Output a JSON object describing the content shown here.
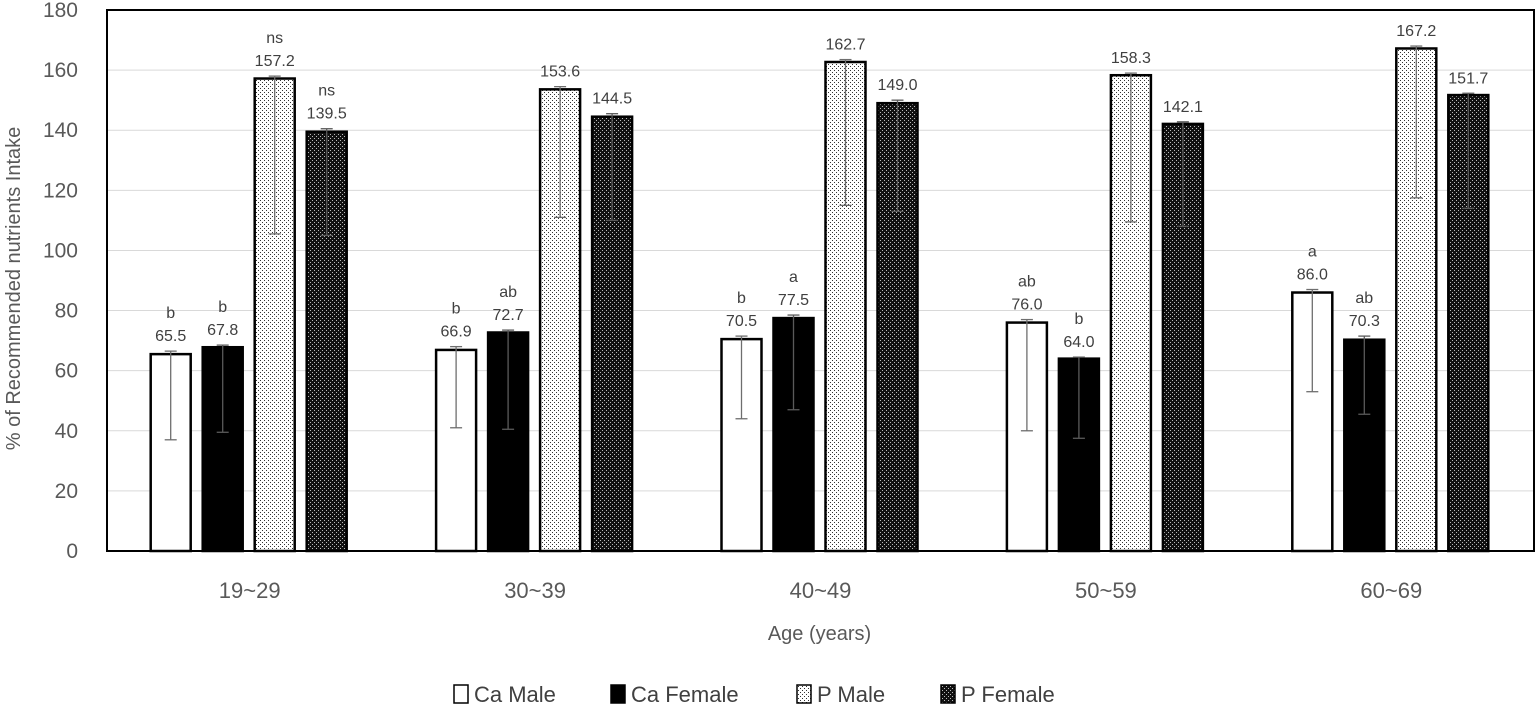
{
  "chart_data": {
    "type": "bar",
    "title": "",
    "xlabel": "Age (years)",
    "ylabel": "% of Recommended nutrients Intake",
    "ylim": [
      0,
      180
    ],
    "yticks": [
      0,
      20,
      40,
      60,
      80,
      100,
      120,
      140,
      160,
      180
    ],
    "categories": [
      "19~29",
      "30~39",
      "40~49",
      "50~59",
      "60~69"
    ],
    "legend_position": "bottom",
    "grid": true,
    "series": [
      {
        "name": "Ca Male",
        "pattern": "white",
        "values": [
          65.5,
          66.9,
          70.5,
          76.0,
          86.0
        ],
        "labels": [
          "65.5",
          "66.9",
          "70.5",
          "76.0",
          "86.0"
        ],
        "error_low": [
          37,
          41,
          44,
          40,
          53
        ],
        "error_high": [
          66.5,
          68,
          71.5,
          77,
          87
        ],
        "significance": [
          "b",
          "b",
          "b",
          "ab",
          "a"
        ]
      },
      {
        "name": "Ca Female",
        "pattern": "black",
        "values": [
          67.8,
          72.7,
          77.5,
          64.0,
          70.3
        ],
        "labels": [
          "67.8",
          "72.7",
          "77.5",
          "64.0",
          "70.3"
        ],
        "error_low": [
          39.5,
          40.5,
          47,
          37.5,
          45.5
        ],
        "error_high": [
          68.5,
          73.5,
          78.5,
          64.5,
          71.5
        ],
        "significance": [
          "b",
          "ab",
          "a",
          "b",
          "ab"
        ]
      },
      {
        "name": "P Male",
        "pattern": "dotted",
        "values": [
          157.2,
          153.6,
          162.7,
          158.3,
          167.2
        ],
        "labels": [
          "157.2",
          "153.6",
          "162.7",
          "158.3",
          "167.2"
        ],
        "error_low": [
          105.5,
          111,
          115,
          109.5,
          117.5
        ],
        "error_high": [
          158,
          154.5,
          163.5,
          159,
          168
        ],
        "significance": [
          "ns",
          "",
          "",
          "",
          ""
        ]
      },
      {
        "name": "P Female",
        "pattern": "dense",
        "values": [
          139.5,
          144.5,
          149.0,
          142.1,
          151.7
        ],
        "labels": [
          "139.5",
          "144.5",
          "149.0",
          "142.1",
          "151.7"
        ],
        "error_low": [
          105,
          110,
          113,
          108,
          114
        ],
        "error_high": [
          140.5,
          145.5,
          150,
          142.8,
          152.3
        ],
        "significance": [
          "ns",
          "",
          "",
          "",
          ""
        ]
      }
    ]
  }
}
